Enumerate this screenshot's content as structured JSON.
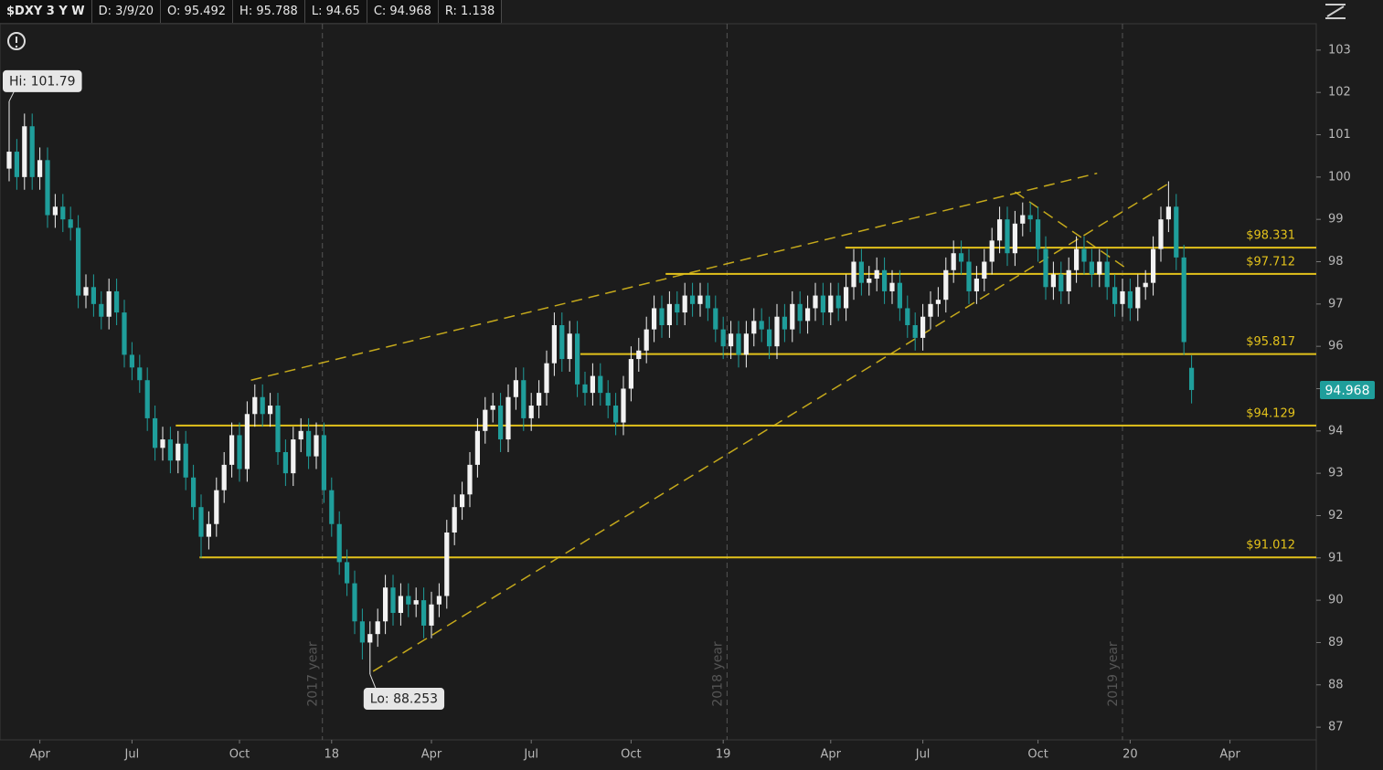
{
  "header_fields": [
    "$DXY 3 Y W",
    "D: 3/9/20",
    "O: 95.492",
    "H: 95.788",
    "L: 94.65",
    "C: 94.968",
    "R: 1.138"
  ],
  "chart_data": {
    "type": "candlestick",
    "xlim": [
      -1.19,
      170.24
    ],
    "ylim": [
      86.7,
      103.58
    ],
    "xticks": [
      {
        "value": 4,
        "label": "Apr"
      },
      {
        "value": 16,
        "label": "Jul"
      },
      {
        "value": 30,
        "label": "Oct"
      },
      {
        "value": 42,
        "label": "18"
      },
      {
        "value": 55,
        "label": "Apr"
      },
      {
        "value": 68,
        "label": "Jul"
      },
      {
        "value": 81,
        "label": "Oct"
      },
      {
        "value": 93,
        "label": "19"
      },
      {
        "value": 107,
        "label": "Apr"
      },
      {
        "value": 119,
        "label": "Jul"
      },
      {
        "value": 134,
        "label": "Oct"
      },
      {
        "value": 146,
        "label": "20"
      },
      {
        "value": 159,
        "label": "Apr"
      }
    ],
    "yticks": [
      87,
      88,
      89,
      90,
      91,
      92,
      93,
      94,
      95,
      96,
      97,
      98,
      99,
      100,
      101,
      102,
      103
    ],
    "year_separators": [
      {
        "value": 40.8,
        "label": "2017 year"
      },
      {
        "value": 93.5,
        "label": "2018 year"
      },
      {
        "value": 145,
        "label": "2019 year"
      }
    ],
    "grid": true,
    "up_color": "#f2f2f2",
    "down_color": "#1f9e9b",
    "level_color": "#e3c21b",
    "open": [
      100.2,
      100.6,
      100.0,
      101.2,
      100.0,
      100.4,
      99.1,
      99.3,
      99.0,
      98.8,
      97.2,
      97.4,
      97.0,
      96.7,
      97.3,
      96.8,
      95.8,
      95.5,
      95.2,
      94.3,
      93.6,
      93.8,
      93.3,
      93.7,
      92.9,
      92.2,
      91.5,
      91.8,
      92.6,
      93.2,
      93.9,
      93.1,
      94.4,
      94.8,
      94.4,
      94.6,
      93.5,
      93.0,
      93.8,
      94.0,
      93.4,
      93.9,
      92.6,
      91.8,
      90.9,
      90.4,
      89.5,
      89.0,
      89.2,
      89.5,
      90.3,
      89.7,
      90.1,
      89.9,
      90.0,
      89.4,
      89.9,
      90.1,
      91.6,
      92.2,
      92.5,
      93.2,
      94.0,
      94.5,
      94.6,
      93.8,
      94.8,
      95.2,
      94.3,
      94.6,
      94.9,
      95.6,
      96.5,
      95.7,
      96.3,
      95.1,
      94.9,
      95.3,
      94.9,
      94.6,
      94.2,
      95.0,
      95.7,
      95.9,
      96.4,
      96.9,
      96.5,
      97.0,
      96.8,
      97.2,
      97.0,
      97.2,
      96.9,
      96.4,
      96.0,
      96.3,
      95.8,
      96.3,
      96.6,
      96.4,
      96.0,
      96.7,
      96.4,
      97.0,
      96.6,
      96.9,
      97.2,
      96.8,
      97.2,
      96.9,
      97.4,
      98.0,
      97.5,
      97.6,
      97.8,
      97.3,
      97.5,
      96.9,
      96.5,
      96.2,
      96.7,
      97.0,
      97.1,
      97.8,
      98.2,
      98.0,
      97.3,
      97.6,
      98.0,
      98.5,
      99.0,
      98.2,
      98.9,
      99.1,
      99.0,
      98.3,
      97.4,
      97.7,
      97.3,
      97.8,
      98.3,
      98.0,
      97.7,
      98.0,
      97.4,
      97.0,
      97.3,
      96.9,
      97.4,
      97.5,
      98.3,
      99.0,
      99.3,
      98.1,
      95.492
    ],
    "high": [
      101.79,
      100.9,
      101.5,
      101.5,
      100.7,
      100.7,
      99.6,
      99.6,
      99.3,
      99.1,
      97.7,
      97.7,
      97.3,
      97.6,
      97.6,
      97.1,
      96.1,
      95.8,
      95.5,
      94.6,
      94.1,
      94.1,
      94.0,
      94.0,
      93.2,
      92.5,
      92.1,
      92.9,
      93.5,
      94.2,
      94.2,
      94.7,
      95.1,
      95.1,
      94.9,
      94.9,
      93.8,
      94.1,
      94.3,
      94.3,
      94.2,
      94.2,
      92.9,
      92.1,
      91.2,
      90.7,
      89.8,
      89.5,
      89.8,
      90.6,
      90.6,
      90.4,
      90.4,
      90.3,
      90.3,
      90.2,
      90.4,
      91.9,
      92.5,
      92.8,
      93.5,
      94.3,
      94.8,
      94.9,
      94.9,
      95.1,
      95.5,
      95.5,
      94.9,
      95.2,
      95.9,
      96.8,
      96.8,
      96.6,
      96.6,
      95.4,
      95.6,
      95.6,
      95.2,
      94.9,
      95.3,
      96.0,
      96.2,
      96.7,
      97.2,
      97.2,
      97.3,
      97.3,
      97.5,
      97.5,
      97.5,
      97.5,
      97.2,
      96.7,
      96.6,
      96.6,
      96.6,
      96.9,
      96.9,
      96.7,
      97.0,
      97.0,
      97.3,
      97.3,
      97.2,
      97.5,
      97.5,
      97.5,
      97.5,
      97.7,
      98.3,
      98.3,
      97.9,
      98.1,
      98.1,
      97.8,
      97.8,
      97.2,
      96.8,
      97.0,
      97.3,
      97.4,
      98.1,
      98.5,
      98.5,
      98.3,
      97.9,
      98.3,
      98.8,
      99.3,
      99.3,
      99.2,
      99.4,
      99.4,
      99.3,
      98.6,
      98.0,
      98.0,
      98.1,
      98.6,
      98.6,
      98.3,
      98.3,
      98.3,
      97.7,
      97.6,
      97.6,
      97.7,
      97.8,
      98.6,
      99.3,
      99.9,
      99.6,
      98.4,
      95.788
    ],
    "low": [
      99.9,
      99.7,
      99.7,
      99.7,
      99.7,
      98.8,
      98.8,
      98.7,
      98.5,
      96.9,
      96.9,
      96.7,
      96.4,
      96.4,
      96.5,
      95.5,
      95.2,
      94.9,
      94.0,
      93.3,
      93.3,
      93.0,
      93.0,
      92.6,
      91.9,
      91.0,
      91.2,
      91.5,
      92.3,
      92.9,
      92.8,
      92.8,
      94.1,
      94.1,
      94.1,
      93.2,
      92.7,
      92.7,
      93.5,
      93.1,
      93.1,
      92.3,
      91.5,
      90.6,
      90.1,
      89.2,
      88.6,
      88.253,
      88.9,
      89.2,
      89.4,
      89.4,
      89.6,
      89.6,
      89.1,
      89.1,
      89.6,
      89.8,
      91.3,
      91.9,
      92.2,
      92.9,
      93.7,
      94.2,
      93.5,
      93.5,
      94.5,
      94.0,
      94.0,
      94.3,
      94.6,
      95.3,
      95.4,
      95.4,
      94.8,
      94.6,
      94.6,
      94.6,
      94.3,
      93.9,
      93.9,
      94.7,
      95.4,
      95.6,
      96.1,
      96.2,
      96.2,
      96.5,
      96.5,
      96.7,
      96.7,
      96.6,
      96.1,
      95.7,
      95.7,
      95.5,
      95.5,
      96.0,
      96.1,
      95.7,
      95.7,
      96.1,
      96.1,
      96.3,
      96.3,
      96.6,
      96.5,
      96.5,
      96.6,
      96.6,
      97.1,
      97.2,
      97.2,
      97.3,
      97.0,
      97.0,
      96.6,
      96.2,
      95.9,
      95.9,
      96.4,
      96.7,
      96.8,
      97.5,
      97.7,
      97.0,
      97.0,
      97.3,
      97.7,
      98.2,
      97.9,
      97.9,
      98.6,
      98.7,
      98.0,
      97.1,
      97.1,
      97.0,
      97.0,
      97.5,
      97.7,
      97.4,
      97.4,
      97.1,
      96.7,
      96.7,
      96.6,
      96.6,
      97.1,
      97.2,
      98.0,
      98.7,
      97.8,
      95.8,
      94.65
    ],
    "close": [
      100.6,
      100.0,
      101.2,
      100.0,
      100.4,
      99.1,
      99.3,
      99.0,
      98.8,
      97.2,
      97.4,
      97.0,
      96.7,
      97.3,
      96.8,
      95.8,
      95.5,
      95.2,
      94.3,
      93.6,
      93.8,
      93.3,
      93.7,
      92.9,
      92.2,
      91.5,
      91.8,
      92.6,
      93.2,
      93.9,
      93.1,
      94.4,
      94.8,
      94.4,
      94.6,
      93.5,
      93.0,
      93.8,
      94.0,
      93.4,
      93.9,
      92.6,
      91.8,
      90.9,
      90.4,
      89.5,
      89.0,
      89.2,
      89.5,
      90.3,
      89.7,
      90.1,
      89.9,
      90.0,
      89.4,
      89.9,
      90.1,
      91.6,
      92.2,
      92.5,
      93.2,
      94.0,
      94.5,
      94.6,
      93.8,
      94.8,
      95.2,
      94.3,
      94.6,
      94.9,
      95.6,
      96.5,
      95.7,
      96.3,
      95.1,
      94.9,
      95.3,
      94.9,
      94.6,
      94.2,
      95.0,
      95.7,
      95.9,
      96.4,
      96.9,
      96.5,
      97.0,
      96.8,
      97.2,
      97.0,
      97.2,
      96.9,
      96.4,
      96.0,
      96.3,
      95.8,
      96.3,
      96.6,
      96.4,
      96.0,
      96.7,
      96.4,
      97.0,
      96.6,
      96.9,
      97.2,
      96.8,
      97.2,
      96.9,
      97.4,
      98.0,
      97.5,
      97.6,
      97.8,
      97.3,
      97.5,
      96.9,
      96.5,
      96.2,
      96.7,
      97.0,
      97.1,
      97.8,
      98.2,
      98.0,
      97.3,
      97.6,
      98.0,
      98.5,
      99.0,
      98.2,
      98.9,
      99.1,
      99.0,
      98.3,
      97.4,
      97.7,
      97.3,
      97.8,
      98.3,
      98.0,
      97.7,
      98.0,
      97.4,
      97.0,
      97.3,
      96.9,
      97.4,
      97.5,
      98.3,
      99.0,
      99.3,
      98.1,
      96.1,
      94.968
    ],
    "levels": [
      {
        "value": 98.331,
        "label": "$98.331",
        "from": 108.9
      },
      {
        "value": 97.712,
        "label": "$97.712",
        "from": 85.5
      },
      {
        "value": 95.817,
        "label": "$95.817",
        "from": 74.4
      },
      {
        "value": 94.129,
        "label": "$94.129",
        "from": 21.7
      },
      {
        "value": 91.012,
        "label": "$91.012",
        "from": 24.8
      }
    ],
    "trendlines": [
      {
        "x": [
          31.5,
          141.7
        ],
        "y": [
          95.2,
          100.09
        ]
      },
      {
        "x": [
          47.4,
          151.2
        ],
        "y": [
          88.32,
          99.87
        ]
      },
      {
        "x": [
          131,
          145.2
        ],
        "y": [
          99.65,
          97.88
        ]
      }
    ],
    "annotations": [
      {
        "label": "Hi: 101.79",
        "x": 0,
        "y": 101.79
      },
      {
        "label": "Lo: 88.253",
        "x": 47,
        "y": 88.253
      }
    ],
    "last_price": 94.968
  }
}
